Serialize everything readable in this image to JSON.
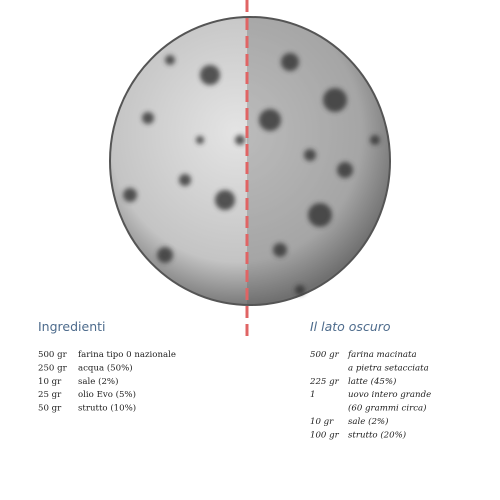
{
  "left": {
    "title": "Ingredienti",
    "rows": [
      {
        "qty": "500 gr",
        "lines": [
          "farina tipo 0 nazionale"
        ]
      },
      {
        "qty": "250 gr",
        "lines": [
          "acqua (50%)"
        ]
      },
      {
        "qty": "10 gr",
        "lines": [
          "sale (2%)"
        ]
      },
      {
        "qty": "25 gr",
        "lines": [
          "olio Evo (5%)"
        ]
      },
      {
        "qty": "50 gr",
        "lines": [
          "strutto (10%)"
        ]
      }
    ]
  },
  "right": {
    "title": "Il lato oscuro",
    "rows": [
      {
        "qty": "500 gr",
        "lines": [
          "farina macinata",
          "a pietra setacciata"
        ]
      },
      {
        "qty": "225 gr",
        "lines": [
          "latte (45%)"
        ]
      },
      {
        "qty": "1",
        "lines": [
          "uovo intero grande",
          "(60 grammi circa)"
        ]
      },
      {
        "qty": "10 gr",
        "lines": [
          "sale (2%)"
        ]
      },
      {
        "qty": "100 gr",
        "lines": [
          "strutto (20%)"
        ]
      }
    ]
  }
}
